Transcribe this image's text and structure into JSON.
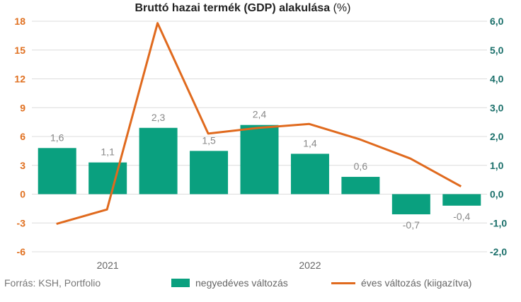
{
  "chart_data": {
    "type": "bar+line",
    "title": "Bruttó hazai termék (GDP) alakulása",
    "title_unit": "(%)",
    "source": "Forrás: KSH, Portfolio",
    "year_labels": [
      "2021",
      "2022"
    ],
    "left_axis": {
      "min": -6,
      "max": 18,
      "ticks": [
        "18",
        "15",
        "12",
        "9",
        "6",
        "3",
        "0",
        "-3",
        "-6"
      ],
      "color": "#e07020"
    },
    "right_axis": {
      "min": -2,
      "max": 6,
      "ticks": [
        "6,0",
        "5,0",
        "4,0",
        "3,0",
        "2,0",
        "1,0",
        "0,0",
        "-1,0",
        "-2,0"
      ],
      "color": "#1a6f6a"
    },
    "bars": {
      "name": "negyedéves változás",
      "color": "#0aa07f",
      "values": [
        1.6,
        1.1,
        2.3,
        1.5,
        2.4,
        1.4,
        0.6,
        -0.7,
        -0.4
      ],
      "labels": [
        "1,6",
        "1,1",
        "2,3",
        "1,5",
        "2,4",
        "1,4",
        "0,6",
        "-0,7",
        "-0,4"
      ]
    },
    "line": {
      "name": "éves változás (kiigazítva)",
      "color": "#e06a1e",
      "values": [
        -3.1,
        -1.6,
        17.8,
        6.3,
        6.9,
        7.3,
        5.7,
        3.7,
        0.8
      ]
    },
    "grid": true
  }
}
